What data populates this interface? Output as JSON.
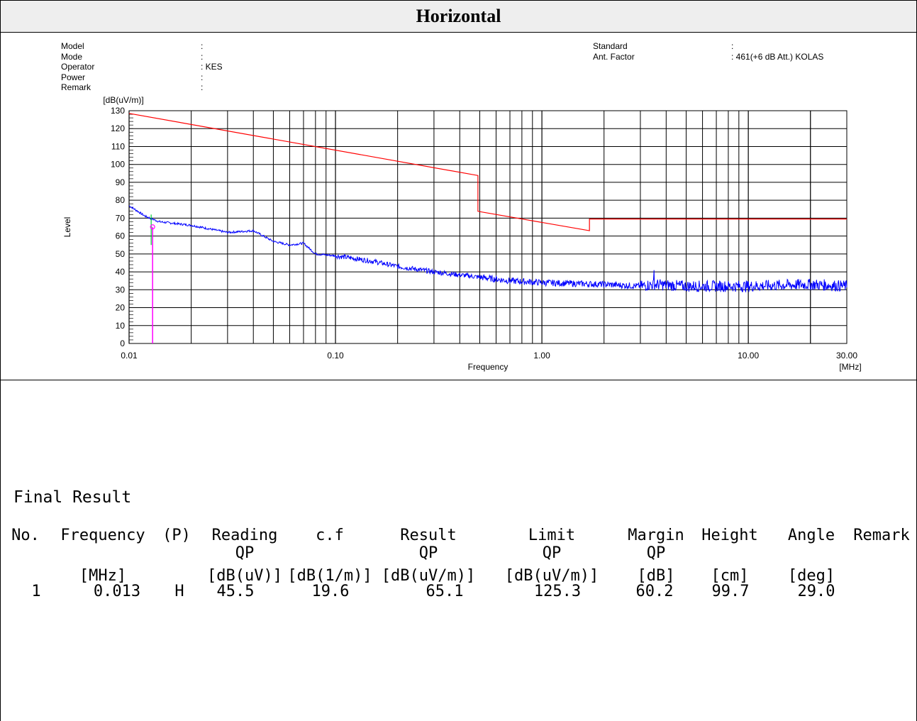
{
  "header": {
    "title": "Horizontal"
  },
  "meta": {
    "left_labels": [
      "Model",
      "Mode",
      "Operator",
      "Power",
      "Remark"
    ],
    "left_values": [
      ":",
      ":",
      ": KES",
      ":",
      ":"
    ],
    "right_labels": [
      "Standard",
      "Ant. Factor"
    ],
    "right_values": [
      ":",
      ": 461(+6 dB Att.) KOLAS"
    ]
  },
  "chart_data": {
    "type": "line",
    "ylabel": "Level",
    "yunit": "[dB(uV/m)]",
    "xlabel": "Frequency",
    "xunit": "[MHz]",
    "x_scale": "log",
    "xlim": [
      0.01,
      30
    ],
    "ylim": [
      0,
      130
    ],
    "x_tick_labels": [
      "0.01",
      "0.10",
      "1.00",
      "10.00",
      "30.00"
    ],
    "x_ticks": [
      0.01,
      0.1,
      1,
      10,
      30
    ],
    "y_ticks": [
      0,
      10,
      20,
      30,
      40,
      50,
      60,
      70,
      80,
      90,
      100,
      110,
      120,
      130
    ],
    "grid": true,
    "series": [
      {
        "color": "#ff0000",
        "x": [
          0.01,
          0.49,
          0.49,
          1.7,
          1.7,
          30
        ],
        "y": [
          128.5,
          93.8,
          73.8,
          63.0,
          69.5,
          69.5
        ]
      },
      {
        "color": "#0000ff",
        "x": [
          0.01,
          0.012,
          0.014,
          0.02,
          0.03,
          0.04,
          0.05,
          0.06,
          0.07,
          0.08,
          0.1,
          0.15,
          0.2,
          0.3,
          0.5,
          0.7,
          1,
          2,
          3,
          3.5,
          5,
          10,
          20,
          30
        ],
        "y": [
          77,
          71,
          68,
          66,
          62,
          63,
          57,
          55,
          56,
          50,
          49,
          46,
          43,
          40,
          37,
          35,
          34,
          33,
          32,
          33,
          32,
          32,
          33,
          32
        ]
      }
    ],
    "markers": [
      {
        "x": 0.013,
        "y": 65.1,
        "color": "#ff00ff"
      }
    ]
  },
  "result": {
    "title": "Final Result",
    "columns": [
      {
        "name": "No.",
        "sub": "",
        "unit": ""
      },
      {
        "name": "Frequency",
        "sub": "",
        "unit": "[MHz]"
      },
      {
        "name": "(P)",
        "sub": "",
        "unit": ""
      },
      {
        "name": "Reading",
        "sub": "QP",
        "unit": "[dB(uV)]"
      },
      {
        "name": "c.f",
        "sub": "",
        "unit": "[dB(1/m)]"
      },
      {
        "name": "Result",
        "sub": "QP",
        "unit": "[dB(uV/m)]"
      },
      {
        "name": "Limit",
        "sub": "QP",
        "unit": "[dB(uV/m)]"
      },
      {
        "name": "Margin",
        "sub": "QP",
        "unit": "[dB]"
      },
      {
        "name": "Height",
        "sub": "",
        "unit": "[cm]"
      },
      {
        "name": "Angle",
        "sub": "",
        "unit": "[deg]"
      },
      {
        "name": "Remark",
        "sub": "",
        "unit": ""
      }
    ],
    "rows": [
      [
        "1",
        "0.013",
        "H",
        "45.5",
        "19.6",
        "65.1",
        "125.3",
        "60.2",
        "99.7",
        "29.0",
        ""
      ]
    ]
  }
}
